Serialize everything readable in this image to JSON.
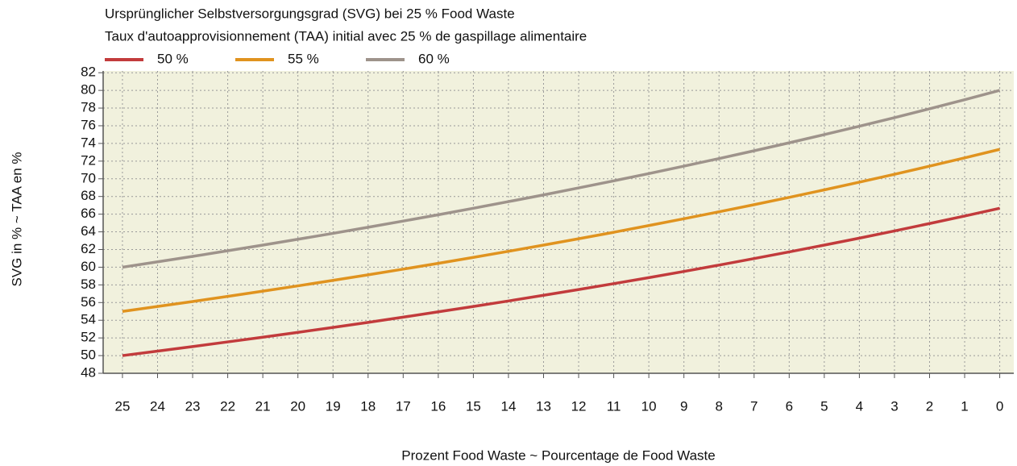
{
  "chart_data": {
    "type": "line",
    "title": "Ursprünglicher Selbstversorgungsgrad (SVG) bei 25 % Food Waste",
    "subtitle": "Taux d'autoapprovisionnement (TAA) initial avec 25 % de gaspillage alimentaire",
    "xlabel": "Prozent Food Waste   ~   Pourcentage de Food Waste",
    "ylabel": "SVG in %   ~   TAA en %",
    "x": [
      25,
      24,
      23,
      22,
      21,
      20,
      19,
      18,
      17,
      16,
      15,
      14,
      13,
      12,
      11,
      10,
      9,
      8,
      7,
      6,
      5,
      4,
      3,
      2,
      1,
      0
    ],
    "series": [
      {
        "name": "50 %",
        "color": "#c23b3c",
        "values": [
          50,
          50.51,
          51.02,
          51.55,
          52.08,
          52.63,
          53.19,
          53.76,
          54.35,
          54.95,
          55.56,
          56.18,
          56.82,
          57.47,
          58.14,
          58.82,
          59.52,
          60.24,
          60.98,
          61.73,
          62.5,
          63.29,
          64.1,
          64.94,
          65.79,
          66.67
        ]
      },
      {
        "name": "55 %",
        "color": "#e0931f",
        "values": [
          55,
          55.56,
          56.12,
          56.7,
          57.29,
          57.89,
          58.51,
          59.14,
          59.78,
          60.44,
          61.11,
          61.8,
          62.5,
          63.22,
          63.95,
          64.71,
          65.48,
          66.27,
          67.07,
          67.9,
          68.75,
          69.62,
          70.51,
          71.43,
          72.37,
          73.33
        ]
      },
      {
        "name": "60 %",
        "color": "#9e938b",
        "values": [
          60,
          60.61,
          61.22,
          61.86,
          62.5,
          63.16,
          63.83,
          64.52,
          65.22,
          65.93,
          66.67,
          67.42,
          68.18,
          68.97,
          69.77,
          70.59,
          71.43,
          72.29,
          73.17,
          74.07,
          75,
          75.95,
          76.92,
          77.92,
          78.95,
          80
        ]
      }
    ],
    "xlim": [
      25.55,
      -0.4
    ],
    "xticks": [
      25,
      24,
      23,
      22,
      21,
      20,
      19,
      18,
      17,
      16,
      15,
      14,
      13,
      12,
      11,
      10,
      9,
      8,
      7,
      6,
      5,
      4,
      3,
      2,
      1,
      0
    ],
    "ylim": [
      48,
      82.2
    ],
    "yticks": [
      48,
      50,
      52,
      54,
      56,
      58,
      60,
      62,
      64,
      66,
      68,
      70,
      72,
      74,
      76,
      78,
      80,
      82
    ],
    "grid": true,
    "background": "#f1f1dd"
  }
}
